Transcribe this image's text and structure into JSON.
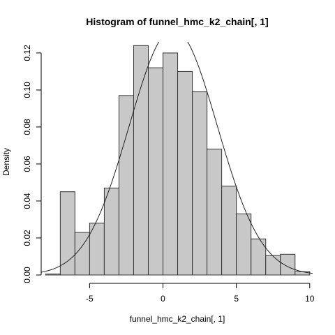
{
  "chart_data": {
    "type": "bar",
    "title": "Histogram of funnel_hmc_k2_chain[, 1]",
    "xlabel": "funnel_hmc_k2_chain[, 1]",
    "ylabel": "Density",
    "xlim": [
      -8.3,
      10.2
    ],
    "ylim": [
      0,
      0.126
    ],
    "x_ticks": [
      -5,
      0,
      5,
      10
    ],
    "x_tick_labels": [
      "-5",
      "0",
      "5",
      "10"
    ],
    "y_ticks": [
      0.0,
      0.02,
      0.04,
      0.06,
      0.08,
      0.1,
      0.12
    ],
    "y_tick_labels": [
      "0.00",
      "0.02",
      "0.04",
      "0.06",
      "0.08",
      "0.10",
      "0.12"
    ],
    "grid": false,
    "bar_color": "#c8c8c8",
    "bar_edge_color": "#333333",
    "bins": [
      {
        "x0": -8,
        "x1": -7,
        "density": 0.0005
      },
      {
        "x0": -7,
        "x1": -6,
        "density": 0.045
      },
      {
        "x0": -6,
        "x1": -5,
        "density": 0.023
      },
      {
        "x0": -5,
        "x1": -4,
        "density": 0.028
      },
      {
        "x0": -4,
        "x1": -3,
        "density": 0.047
      },
      {
        "x0": -3,
        "x1": -2,
        "density": 0.097
      },
      {
        "x0": -2,
        "x1": -1,
        "density": 0.124
      },
      {
        "x0": -1,
        "x1": 0,
        "density": 0.112
      },
      {
        "x0": 0,
        "x1": 1,
        "density": 0.12
      },
      {
        "x0": 1,
        "x1": 2,
        "density": 0.11
      },
      {
        "x0": 2,
        "x1": 3,
        "density": 0.099
      },
      {
        "x0": 3,
        "x1": 4,
        "density": 0.068
      },
      {
        "x0": 4,
        "x1": 5,
        "density": 0.048
      },
      {
        "x0": 5,
        "x1": 6,
        "density": 0.033
      },
      {
        "x0": 6,
        "x1": 7,
        "density": 0.0195
      },
      {
        "x0": 7,
        "x1": 8,
        "density": 0.0105
      },
      {
        "x0": 8,
        "x1": 9,
        "density": 0.0112
      },
      {
        "x0": 9,
        "x1": 10,
        "density": 0.0018
      }
    ],
    "density_curve": {
      "type": "normal",
      "mean": 0.7,
      "sd": 3.0,
      "x_range": [
        -8.3,
        10.2
      ]
    }
  }
}
